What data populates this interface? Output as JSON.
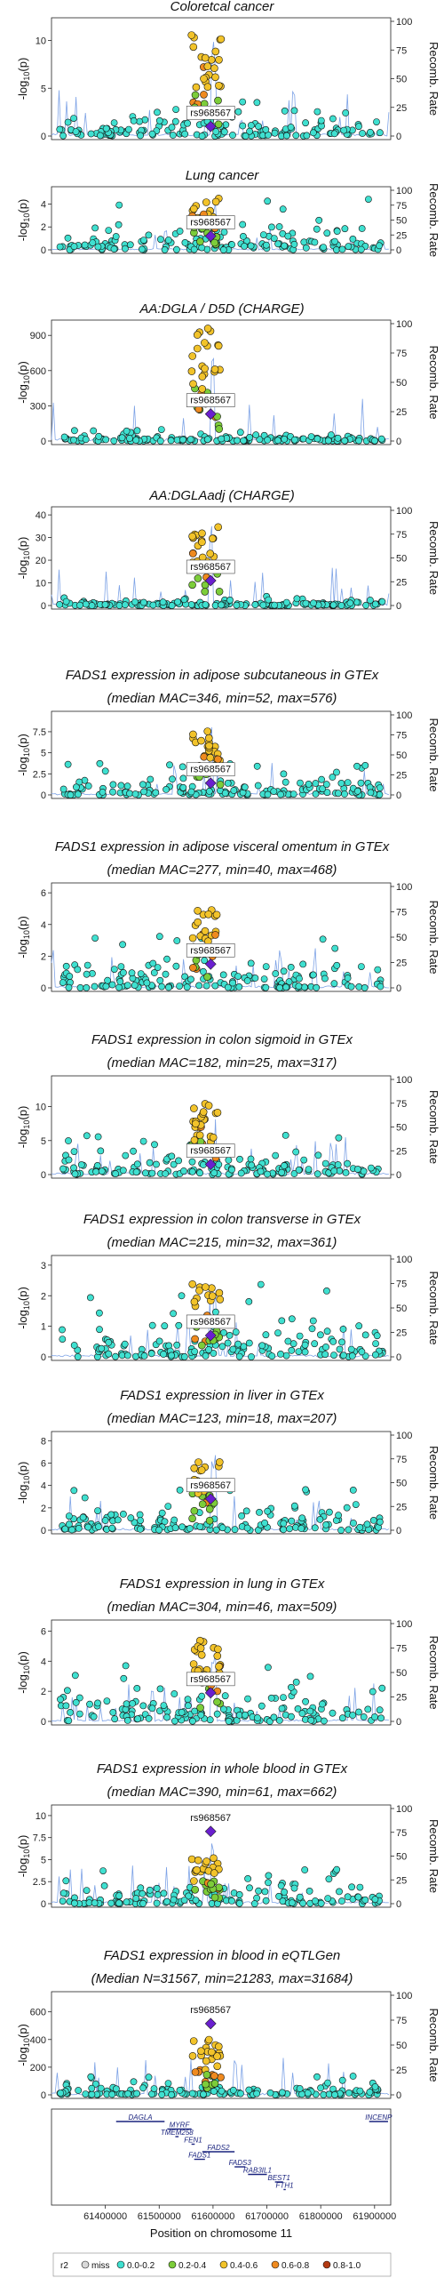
{
  "chart_data": {
    "type": "scatter",
    "x_label": "Position on chromosome 11",
    "x_range": [
      61300000,
      61930000
    ],
    "x_ticks": [
      61400000,
      61500000,
      61600000,
      61700000,
      61800000,
      61900000
    ],
    "x_tick_labels": [
      "61400000",
      "61500000",
      "61600000",
      "61700000",
      "61800000",
      "61900000"
    ],
    "y_label": "-log10(p)",
    "y2_label": "Recomb. Rate",
    "y2_ticks": [
      0,
      25,
      50,
      75,
      100
    ],
    "lead_snp": "rs968567",
    "lead_position": 61595564,
    "panels": [
      {
        "title": "Coloretcal cancer",
        "ymax": 12,
        "yticks": [
          0,
          5,
          10
        ],
        "lead_y": 1.0,
        "peak": 10.8,
        "bg": 2.2
      },
      {
        "title": "Lung cancer",
        "ymax": 5.2,
        "yticks": [
          0,
          2,
          4
        ],
        "lead_y": 1.2,
        "peak": 4.5,
        "bg": 2.6
      },
      {
        "title": "AA:DGLA / D5D (CHARGE)",
        "ymax": 1000,
        "yticks": [
          0,
          300,
          600,
          900
        ],
        "lead_y": 230,
        "peak": 960,
        "bg": 60
      },
      {
        "title": "AA:DGLAadj (CHARGE)",
        "ymax": 42,
        "yticks": [
          0,
          10,
          20,
          30,
          40
        ],
        "lead_y": 11,
        "peak": 35,
        "bg": 2.5
      },
      {
        "title": "FADS1 expression in adipose subcutaneous in GTEx",
        "subtitle": "(median MAC=346, min=52, max=576)",
        "ymax": 9.5,
        "yticks": [
          0,
          2.5,
          5,
          7.5
        ],
        "lead_y": 1.4,
        "peak": 7.6,
        "bg": 2.2
      },
      {
        "title": "FADS1 expression in adipose visceral omentum in GTEx",
        "subtitle": "(median MAC=277, min=40, max=468)",
        "ymax": 6.4,
        "yticks": [
          0,
          2,
          4,
          6
        ],
        "lead_y": 1.5,
        "peak": 5.0,
        "bg": 2.0
      },
      {
        "title": "FADS1 expression in colon sigmoid in GTEx",
        "subtitle": "(median MAC=182, min=25, max=317)",
        "ymax": 14,
        "yticks": [
          0,
          5,
          10
        ],
        "lead_y": 1.5,
        "peak": 10.5,
        "bg": 3.6
      },
      {
        "title": "FADS1 expression in colon transverse in GTEx",
        "subtitle": "(median MAC=215, min=32, max=361)",
        "ymax": 3.2,
        "yticks": [
          0,
          1,
          2,
          3
        ],
        "lead_y": 0.7,
        "peak": 2.4,
        "bg": 1.5
      },
      {
        "title": "FADS1 expression in liver in GTEx",
        "subtitle": "(median MAC=123, min=18, max=207)",
        "ymax": 8.5,
        "yticks": [
          0,
          2,
          4,
          6,
          8
        ],
        "lead_y": 2.8,
        "peak": 6.6,
        "bg": 2.2
      },
      {
        "title": "FADS1 expression in lung in GTEx",
        "subtitle": "(median MAC=304, min=46, max=509)",
        "ymax": 6.5,
        "yticks": [
          0,
          2,
          4,
          6
        ],
        "lead_y": 1.9,
        "peak": 5.4,
        "bg": 2.4
      },
      {
        "title": "FADS1 expression in whole blood in GTEx",
        "subtitle": "(median MAC=390, min=61, max=662)",
        "ymax": 10.8,
        "yticks": [
          0,
          2.5,
          5,
          7.5,
          10
        ],
        "lead_y": 8.2,
        "peak": 5.6,
        "bg": 2.3
      },
      {
        "title": "FADS1 expression in blood in eQTLGen",
        "subtitle": "(Median N=31567, min=21283, max=31684)",
        "ymax": 720,
        "yticks": [
          0,
          200,
          400,
          600
        ],
        "lead_y": 515,
        "peak": 400,
        "bg": 80
      }
    ],
    "genes": [
      {
        "name": "DAGLA",
        "start": 61420000,
        "end": 61510000,
        "row": 0
      },
      {
        "name": "INCENP",
        "start": 61890000,
        "end": 61925000,
        "row": 0
      },
      {
        "name": "MYRF",
        "start": 61515000,
        "end": 61560000,
        "row": 1
      },
      {
        "name": "TMEM258",
        "start": 61530000,
        "end": 61536000,
        "row": 2
      },
      {
        "name": "FEN1",
        "start": 61560000,
        "end": 61566000,
        "row": 3
      },
      {
        "name": "FADS2",
        "start": 61580000,
        "end": 61640000,
        "row": 4
      },
      {
        "name": "FADS1",
        "start": 61565000,
        "end": 61585000,
        "row": 5
      },
      {
        "name": "FADS3",
        "start": 61640000,
        "end": 61660000,
        "row": 6
      },
      {
        "name": "RAB3IL1",
        "start": 61665000,
        "end": 61700000,
        "row": 7
      },
      {
        "name": "BEST1",
        "start": 61715000,
        "end": 61730000,
        "row": 8
      },
      {
        "name": "FTH1",
        "start": 61731000,
        "end": 61735000,
        "row": 9
      }
    ],
    "legend": {
      "title": "r2",
      "items": [
        {
          "label": "miss",
          "color": "#d9d9d9"
        },
        {
          "label": "0.0-0.2",
          "color": "#3fe0d0"
        },
        {
          "label": "0.2-0.4",
          "color": "#7ccd3a"
        },
        {
          "label": "0.4-0.6",
          "color": "#f2c32a"
        },
        {
          "label": "0.6-0.8",
          "color": "#ef8a1f"
        },
        {
          "label": "0.8-1.0",
          "color": "#b33a12"
        }
      ]
    },
    "colors": {
      "lead": "#6a1fcf",
      "recomb": "#7ea3e6"
    }
  }
}
